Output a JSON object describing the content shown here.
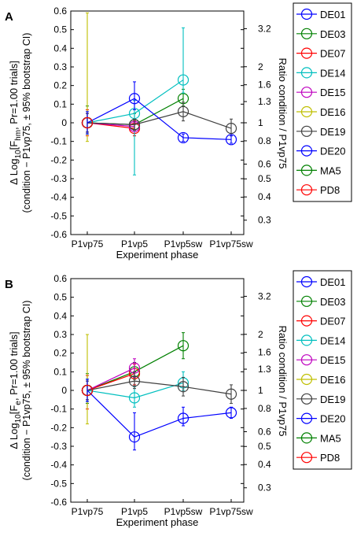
{
  "chart_data": [
    {
      "type": "line",
      "panel_label": "A",
      "categories": [
        "P1vp75",
        "P1vp5",
        "P1vp5sw",
        "P1vp75sw"
      ],
      "xlabel": "Experiment phase",
      "ylabel_line1": "Δ Log₁₀[F_hm, Pr=1.00 trials]",
      "ylabel_line2": "(condition − P1vp75, ± 95% bootstrap CI)",
      "ylabel_right": "Ratio condition / P1vp75",
      "ylim": [
        -0.6,
        0.6
      ],
      "yticks": [
        "-0.6",
        "-0.5",
        "-0.4",
        "-0.3",
        "-0.2",
        "-0.1",
        "0",
        "0.1",
        "0.2",
        "0.3",
        "0.4",
        "0.5",
        "0.6"
      ],
      "right_ticks": [
        "0.3",
        "0.4",
        "0.5",
        "0.6",
        "0.8",
        "1",
        "1.3",
        "1.6",
        "2",
        "3.2"
      ],
      "legend_position": "top-right, outside",
      "series": [
        {
          "name": "DE01",
          "color": "#0000ff",
          "values": [
            0,
            null,
            null,
            null
          ]
        },
        {
          "name": "DE03",
          "color": "#008000",
          "values": [
            0,
            -0.01,
            0.13,
            null
          ],
          "err": [
            [
              -0.06,
              0.09
            ],
            [
              -0.07,
              0.05
            ],
            [
              0.09,
              0.18
            ],
            null
          ]
        },
        {
          "name": "DE07",
          "color": "#ff0000",
          "values": [
            0,
            -0.03,
            null,
            null
          ],
          "err": [
            [
              -0.07,
              0.07
            ],
            [
              -0.07,
              0.01
            ],
            null,
            null
          ]
        },
        {
          "name": "DE14",
          "color": "#00bfbf",
          "values": [
            0,
            0.05,
            0.23,
            null
          ],
          "err": [
            [
              -0.05,
              0.05
            ],
            [
              -0.28,
              0.12
            ],
            [
              0.16,
              0.51
            ],
            null
          ]
        },
        {
          "name": "DE15",
          "color": "#bf00bf",
          "values": [
            0,
            -0.02,
            null,
            null
          ],
          "err": [
            [
              -0.05,
              0.05
            ],
            [
              -0.04,
              0.0
            ],
            null,
            null
          ]
        },
        {
          "name": "DE16",
          "color": "#bfbf00",
          "values": [
            0,
            null,
            null,
            null
          ],
          "err": [
            [
              -0.1,
              0.59
            ],
            null,
            null,
            null
          ]
        },
        {
          "name": "DE19",
          "color": "#404040",
          "values": [
            0,
            -0.01,
            0.06,
            -0.03
          ],
          "err": [
            [
              -0.05,
              0.05
            ],
            [
              -0.04,
              0.02
            ],
            [
              0.01,
              0.11
            ],
            [
              -0.07,
              0.02
            ]
          ]
        },
        {
          "name": "DE20",
          "color": "#0000ff",
          "values": [
            0,
            0.13,
            -0.08,
            -0.09
          ],
          "err": [
            [
              -0.06,
              0.06
            ],
            [
              0.07,
              0.22
            ],
            [
              -0.1,
              -0.06
            ],
            [
              -0.11,
              -0.07
            ]
          ]
        },
        {
          "name": "MA5",
          "color": "#008000",
          "values": [
            0,
            null,
            null,
            null
          ]
        },
        {
          "name": "PD8",
          "color": "#ff0000",
          "values": [
            0,
            null,
            null,
            null
          ]
        }
      ]
    },
    {
      "type": "line",
      "panel_label": "B",
      "categories": [
        "P1vp75",
        "P1vp5",
        "P1vp5sw",
        "P1vp75sw"
      ],
      "xlabel": "Experiment phase",
      "ylabel_line1": "Δ Log₁₀[F_e, Pr=1.00 trials]",
      "ylabel_line2": "(condition − P1vp75, ± 95% bootstrap CI)",
      "ylabel_right": "Ratio condition / P1vp75",
      "ylim": [
        -0.6,
        0.6
      ],
      "yticks": [
        "-0.6",
        "-0.5",
        "-0.4",
        "-0.3",
        "-0.2",
        "-0.1",
        "0",
        "0.1",
        "0.2",
        "0.3",
        "0.4",
        "0.5",
        "0.6"
      ],
      "right_ticks": [
        "0.3",
        "0.4",
        "0.5",
        "0.6",
        "0.8",
        "1",
        "1.3",
        "1.6",
        "2",
        "3.2"
      ],
      "legend_position": "top-right, outside",
      "series": [
        {
          "name": "DE01",
          "color": "#0000ff",
          "values": [
            0,
            null,
            null,
            null
          ]
        },
        {
          "name": "DE03",
          "color": "#008000",
          "values": [
            0,
            0.1,
            0.24,
            null
          ],
          "err": [
            [
              -0.07,
              0.09
            ],
            [
              0.06,
              0.15
            ],
            [
              0.17,
              0.31
            ],
            null
          ]
        },
        {
          "name": "DE07",
          "color": "#ff0000",
          "values": [
            0,
            0.09,
            null,
            null
          ],
          "err": [
            [
              -0.1,
              0.08
            ],
            [
              0.03,
              0.14
            ],
            null,
            null
          ]
        },
        {
          "name": "DE14",
          "color": "#00bfbf",
          "values": [
            0,
            -0.04,
            0.04,
            null
          ],
          "err": [
            [
              -0.06,
              0.06
            ],
            [
              -0.09,
              0.02
            ],
            [
              0.0,
              0.1
            ],
            null
          ]
        },
        {
          "name": "DE15",
          "color": "#bf00bf",
          "values": [
            0,
            0.12,
            null,
            null
          ],
          "err": [
            [
              -0.05,
              0.05
            ],
            [
              0.07,
              0.17
            ],
            null,
            null
          ]
        },
        {
          "name": "DE16",
          "color": "#bfbf00",
          "values": [
            0,
            null,
            null,
            null
          ],
          "err": [
            [
              -0.18,
              0.3
            ],
            null,
            null,
            null
          ]
        },
        {
          "name": "DE19",
          "color": "#404040",
          "values": [
            0,
            0.05,
            0.02,
            -0.02
          ],
          "err": [
            [
              -0.05,
              0.05
            ],
            [
              0.01,
              0.1
            ],
            [
              -0.03,
              0.07
            ],
            [
              -0.07,
              0.03
            ]
          ]
        },
        {
          "name": "DE20",
          "color": "#0000ff",
          "values": [
            0,
            -0.25,
            -0.15,
            -0.12
          ],
          "err": [
            [
              -0.06,
              0.06
            ],
            [
              -0.32,
              -0.12
            ],
            [
              -0.19,
              -0.09
            ],
            [
              -0.15,
              -0.09
            ]
          ]
        },
        {
          "name": "MA5",
          "color": "#008000",
          "values": [
            0,
            null,
            null,
            null
          ]
        },
        {
          "name": "PD8",
          "color": "#ff0000",
          "values": [
            0,
            null,
            null,
            null
          ]
        }
      ]
    }
  ]
}
